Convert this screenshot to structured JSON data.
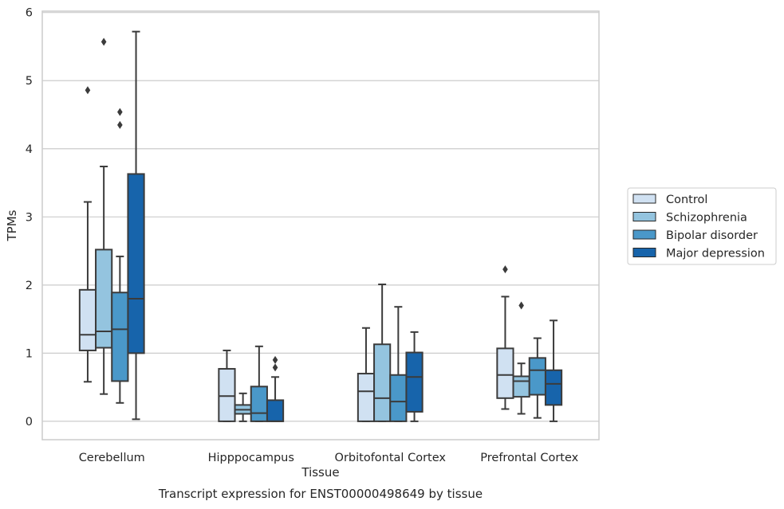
{
  "chart_data": {
    "type": "box",
    "title": "Transcript expression for ENST00000498649 by tissue",
    "xlabel": "Tissue",
    "ylabel": "TPMs",
    "ylim": [
      -0.27,
      6.02
    ],
    "yticks": [
      0,
      1,
      2,
      3,
      4,
      5,
      6
    ],
    "grid": true,
    "legend_position": "right",
    "categories": [
      "Cerebellum",
      "Hipppocampus",
      "Orbitofontal Cortex",
      "Prefrontal Cortex"
    ],
    "series": [
      {
        "name": "Control",
        "color": "#d0e1f2",
        "boxes": [
          {
            "whislo": 0.58,
            "q1": 1.04,
            "med": 1.27,
            "q3": 1.93,
            "whishi": 3.22,
            "fliers": [
              4.86
            ]
          },
          {
            "whislo": 0.0,
            "q1": 0.0,
            "med": 0.37,
            "q3": 0.77,
            "whishi": 1.04,
            "fliers": []
          },
          {
            "whislo": 0.0,
            "q1": 0.0,
            "med": 0.44,
            "q3": 0.7,
            "whishi": 1.37,
            "fliers": []
          },
          {
            "whislo": 0.18,
            "q1": 0.34,
            "med": 0.68,
            "q3": 1.07,
            "whishi": 1.83,
            "fliers": [
              2.23
            ]
          }
        ]
      },
      {
        "name": "Schizophrenia",
        "color": "#94c4df",
        "boxes": [
          {
            "whislo": 0.4,
            "q1": 1.08,
            "med": 1.32,
            "q3": 2.52,
            "whishi": 3.74,
            "fliers": [
              5.57
            ]
          },
          {
            "whislo": 0.0,
            "q1": 0.11,
            "med": 0.17,
            "q3": 0.24,
            "whishi": 0.41,
            "fliers": []
          },
          {
            "whislo": 0.0,
            "q1": 0.0,
            "med": 0.34,
            "q3": 1.13,
            "whishi": 2.01,
            "fliers": []
          },
          {
            "whislo": 0.11,
            "q1": 0.36,
            "med": 0.59,
            "q3": 0.66,
            "whishi": 0.85,
            "fliers": [
              1.7
            ]
          }
        ]
      },
      {
        "name": "Bipolar disorder",
        "color": "#4a98c9",
        "boxes": [
          {
            "whislo": 0.27,
            "q1": 0.59,
            "med": 1.35,
            "q3": 1.89,
            "whishi": 2.42,
            "fliers": [
              4.35,
              4.54
            ]
          },
          {
            "whislo": 0.0,
            "q1": 0.0,
            "med": 0.12,
            "q3": 0.51,
            "whishi": 1.1,
            "fliers": []
          },
          {
            "whislo": 0.0,
            "q1": 0.0,
            "med": 0.29,
            "q3": 0.68,
            "whishi": 1.68,
            "fliers": []
          },
          {
            "whislo": 0.05,
            "q1": 0.39,
            "med": 0.75,
            "q3": 0.93,
            "whishi": 1.22,
            "fliers": []
          }
        ]
      },
      {
        "name": "Major depression",
        "color": "#1764ab",
        "boxes": [
          {
            "whislo": 0.03,
            "q1": 1.0,
            "med": 1.8,
            "q3": 3.63,
            "whishi": 5.72,
            "fliers": []
          },
          {
            "whislo": 0.0,
            "q1": 0.0,
            "med": 0.0,
            "q3": 0.31,
            "whishi": 0.65,
            "fliers": [
              0.79,
              0.9
            ]
          },
          {
            "whislo": 0.0,
            "q1": 0.14,
            "med": 0.65,
            "q3": 1.01,
            "whishi": 1.31,
            "fliers": []
          },
          {
            "whislo": 0.0,
            "q1": 0.24,
            "med": 0.55,
            "q3": 0.75,
            "whishi": 1.48,
            "fliers": []
          }
        ]
      }
    ]
  }
}
